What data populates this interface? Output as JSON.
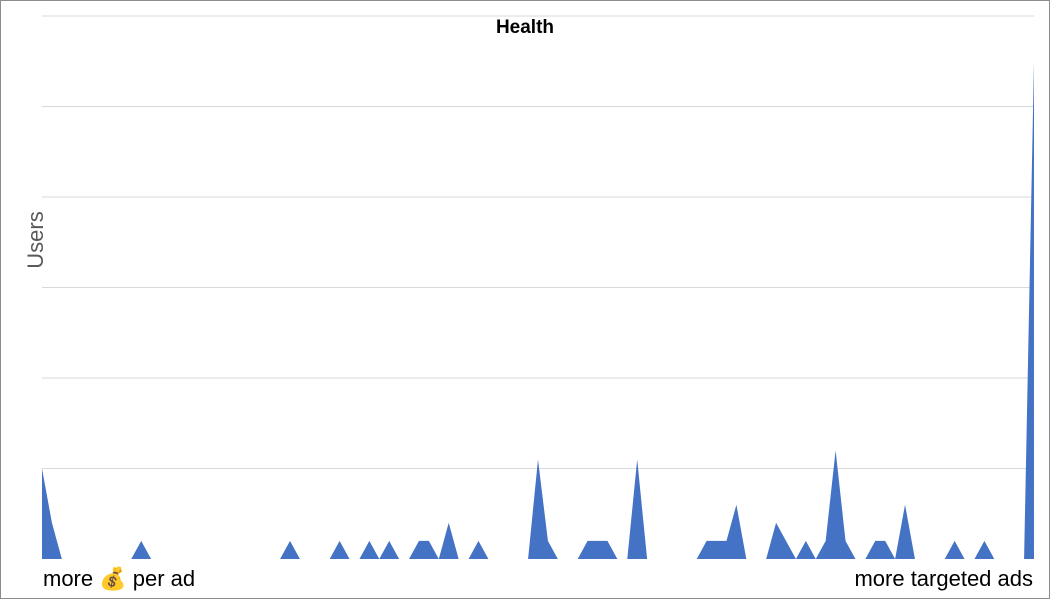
{
  "chart_data": {
    "type": "area",
    "title": "Health",
    "ylabel": "Users",
    "x_start_label": "more 💰 per ad",
    "x_end_label": "more targeted ads",
    "ylim": [
      0,
      6
    ],
    "grid": true,
    "gridlines": [
      1,
      2,
      3,
      4,
      5,
      6
    ],
    "series_color": "#4472c4",
    "values": [
      1,
      0.4,
      0,
      0,
      0,
      0,
      0,
      0,
      0,
      0,
      0.2,
      0,
      0,
      0,
      0,
      0,
      0,
      0,
      0,
      0,
      0,
      0,
      0,
      0,
      0,
      0.2,
      0,
      0,
      0,
      0,
      0.2,
      0,
      0,
      0.2,
      0,
      0.2,
      0,
      0,
      0.2,
      0.2,
      0,
      0.4,
      0,
      0,
      0.2,
      0,
      0,
      0,
      0,
      0,
      1.1,
      0.2,
      0,
      0,
      0,
      0.2,
      0.2,
      0.2,
      0,
      0,
      1.1,
      0,
      0,
      0,
      0,
      0,
      0,
      0.2,
      0.2,
      0.2,
      0.6,
      0,
      0,
      0,
      0.4,
      0.2,
      0,
      0.2,
      0,
      0.2,
      1.2,
      0.2,
      0,
      0,
      0.2,
      0.2,
      0,
      0.6,
      0,
      0,
      0,
      0,
      0.2,
      0,
      0,
      0.2,
      0,
      0,
      0,
      0,
      5.5
    ]
  }
}
